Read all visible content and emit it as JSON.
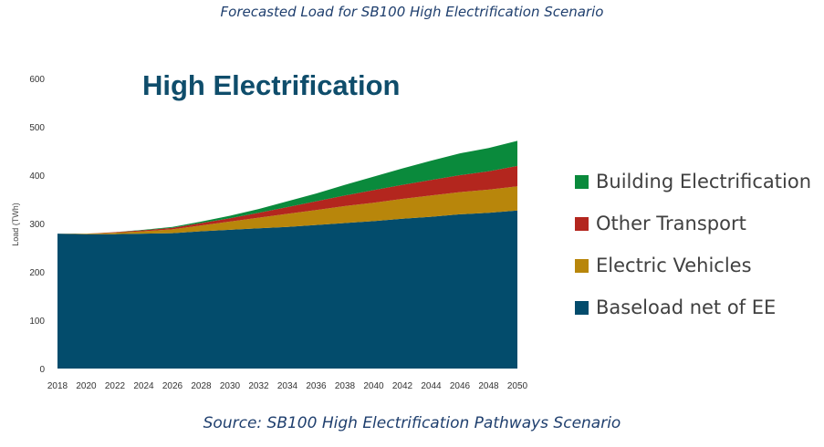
{
  "figure": {
    "title": "Forecasted Load for SB100 High Electrification Scenario",
    "source": "Source: SB100 High Electrification Pathways Scenario"
  },
  "chart_data": {
    "type": "area",
    "stacked": true,
    "title": "High Electrification",
    "xlabel": "",
    "ylabel": "Load (TWh)",
    "ylim": [
      0,
      600
    ],
    "yticks": [
      0,
      100,
      200,
      300,
      400,
      500,
      600
    ],
    "x": [
      2018,
      2020,
      2022,
      2024,
      2026,
      2028,
      2030,
      2032,
      2034,
      2036,
      2038,
      2040,
      2042,
      2044,
      2046,
      2048,
      2050
    ],
    "xtick_labels": [
      "2018",
      "2020",
      "2022",
      "2024",
      "2026",
      "2028",
      "2030",
      "2032",
      "2034",
      "2036",
      "2038",
      "2040",
      "2042",
      "2044",
      "2046",
      "2048",
      "2050"
    ],
    "grid": false,
    "legend_position": "right",
    "series": [
      {
        "name": "Baseload net of EE",
        "color": "#034c6c",
        "values": [
          279,
          278,
          278,
          279,
          280,
          284,
          287,
          290,
          293,
          297,
          301,
          305,
          310,
          314,
          319,
          322,
          327
        ]
      },
      {
        "name": "Electric Vehicles",
        "color": "#b8860b",
        "values": [
          0,
          1,
          3,
          5,
          8,
          12,
          17,
          22,
          27,
          31,
          35,
          38,
          41,
          44,
          46,
          48,
          50
        ]
      },
      {
        "name": "Other Transport",
        "color": "#b3261e",
        "values": [
          0,
          0,
          1,
          2,
          3,
          5,
          7,
          10,
          14,
          18,
          22,
          26,
          29,
          32,
          35,
          38,
          42
        ]
      },
      {
        "name": "Building Electrification",
        "color": "#0a8a3c",
        "values": [
          0,
          0,
          0,
          1,
          2,
          3,
          5,
          8,
          12,
          16,
          22,
          28,
          34,
          40,
          45,
          48,
          52
        ]
      }
    ]
  },
  "legend": {
    "items": [
      {
        "label": "Building Electrification",
        "color": "#0a8a3c"
      },
      {
        "label": "Other Transport",
        "color": "#b3261e"
      },
      {
        "label": "Electric Vehicles",
        "color": "#b8860b"
      },
      {
        "label": "Baseload net of EE",
        "color": "#034c6c"
      }
    ]
  }
}
